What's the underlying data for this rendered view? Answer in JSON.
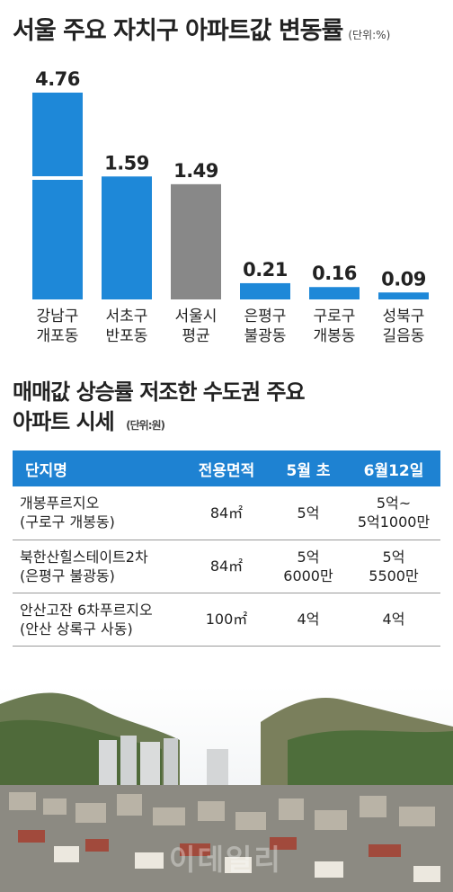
{
  "chart_title": "서울 주요 자치구 아파트값 변동률",
  "chart_unit": "(단위:%)",
  "chart_data": {
    "type": "bar",
    "categories": [
      [
        "강남구",
        "개포동"
      ],
      [
        "서초구",
        "반포동"
      ],
      [
        "서울시",
        "평균"
      ],
      [
        "은평구",
        "불광동"
      ],
      [
        "구로구",
        "개봉동"
      ],
      [
        "성북구",
        "길음동"
      ]
    ],
    "values": [
      4.76,
      1.59,
      1.49,
      0.21,
      0.16,
      0.09
    ],
    "value_labels": [
      "4.76",
      "1.59",
      "1.49",
      "0.21",
      "0.16",
      "0.09"
    ],
    "bar_colors": [
      "#1e88d8",
      "#1e88d8",
      "#888888",
      "#1e88d8",
      "#1e88d8",
      "#1e88d8"
    ],
    "axis_break": "between 1.59 and 4.76 on first bar",
    "grid": false
  },
  "table": {
    "title_line1": "매매값 상승률 저조한 수도권 주요",
    "title_line2": "아파트 시세",
    "unit": "(단위:원)",
    "headers": [
      "단지명",
      "전용면적",
      "5월 초",
      "6월12일"
    ],
    "rows": [
      {
        "name": "개봉푸르지오",
        "location": "(구로구 개봉동)",
        "area": "84㎡",
        "may_line1": "5억",
        "may_line2": "",
        "june_line1": "5억~",
        "june_line2": "5억1000만"
      },
      {
        "name": "북한산힐스테이트2차",
        "location": "(은평구 불광동)",
        "area": "84㎡",
        "may_line1": "5억",
        "may_line2": "6000만",
        "june_line1": "5억",
        "june_line2": "5500만"
      },
      {
        "name": "안산고잔 6차푸르지오",
        "location": "(안산 상록구 사동)",
        "area": "100㎡",
        "may_line1": "4억",
        "may_line2": "",
        "june_line1": "4억",
        "june_line2": ""
      }
    ],
    "header_color": "#1e82d2"
  },
  "photo": {
    "description_icon": "city-photo",
    "watermark": "이데일리"
  }
}
